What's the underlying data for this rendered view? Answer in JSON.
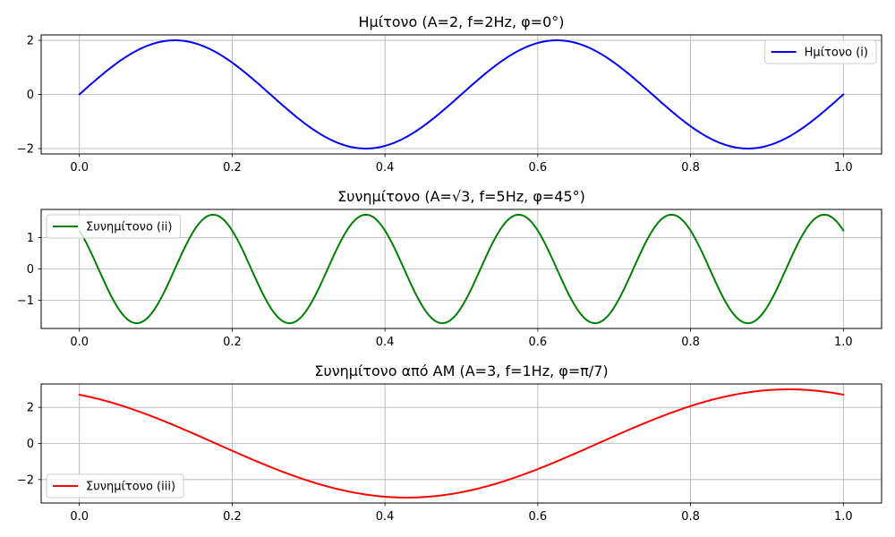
{
  "chart_data": [
    {
      "type": "line",
      "title": "Ημίτονο (A=2, f=2Hz, φ=0°)",
      "xlabel": "",
      "ylabel": "",
      "function": "sin",
      "amplitude": 2,
      "frequency_hz": 2,
      "phase_rad": 0,
      "xlim": [
        -0.05,
        1.05
      ],
      "ylim": [
        -2.2,
        2.2
      ],
      "x_range": [
        0,
        1
      ],
      "x_ticks": [
        0.0,
        0.2,
        0.4,
        0.6,
        0.8,
        1.0
      ],
      "y_ticks": [
        -2,
        0,
        2
      ],
      "grid": true,
      "legend_position": "upper right",
      "series": [
        {
          "name": "Ημίτονο (i)",
          "color": "#0000ff",
          "x": [
            0,
            0.125,
            0.25,
            0.375,
            0.5,
            0.625,
            0.75,
            0.875,
            1.0
          ],
          "values": [
            0,
            2,
            0,
            -2,
            0,
            2,
            0,
            -2,
            0
          ]
        }
      ]
    },
    {
      "type": "line",
      "title": "Συνημίτονο (A=√3, f=5Hz, φ=45°)",
      "xlabel": "",
      "ylabel": "",
      "function": "cos",
      "amplitude": 1.732,
      "frequency_hz": 5,
      "phase_rad": 0.785,
      "xlim": [
        -0.05,
        1.05
      ],
      "ylim": [
        -1.9,
        1.9
      ],
      "x_range": [
        0,
        1
      ],
      "x_ticks": [
        0.0,
        0.2,
        0.4,
        0.6,
        0.8,
        1.0
      ],
      "y_ticks": [
        -1,
        0,
        1
      ],
      "grid": true,
      "legend_position": "upper left",
      "series": [
        {
          "name": "Συνημίτονο (ii)",
          "color": "#008000",
          "x": [
            0,
            0.075,
            0.175,
            0.275,
            0.375,
            0.475,
            0.575,
            0.675,
            0.775,
            0.875,
            0.975,
            1.0
          ],
          "values": [
            1.22,
            -1.73,
            1.73,
            -1.73,
            1.73,
            -1.73,
            1.73,
            -1.73,
            1.73,
            -1.73,
            1.73,
            1.22
          ]
        }
      ]
    },
    {
      "type": "line",
      "title": "Συνημίτονο από AM (A=3, f=1Hz, φ=π/7)",
      "xlabel": "",
      "ylabel": "",
      "function": "cos",
      "amplitude": 3,
      "frequency_hz": 1,
      "phase_rad": 0.449,
      "xlim": [
        -0.05,
        1.05
      ],
      "ylim": [
        -3.3,
        3.3
      ],
      "x_range": [
        0,
        1
      ],
      "x_ticks": [
        0.0,
        0.2,
        0.4,
        0.6,
        0.8,
        1.0
      ],
      "y_ticks": [
        -2,
        0,
        2
      ],
      "grid": true,
      "legend_position": "lower left",
      "series": [
        {
          "name": "Συνημίτονο (iii)",
          "color": "#ff0000",
          "x": [
            0,
            0.179,
            0.429,
            0.679,
            0.929,
            1.0
          ],
          "values": [
            2.7,
            0,
            -3,
            0,
            3,
            2.7
          ]
        }
      ]
    }
  ]
}
